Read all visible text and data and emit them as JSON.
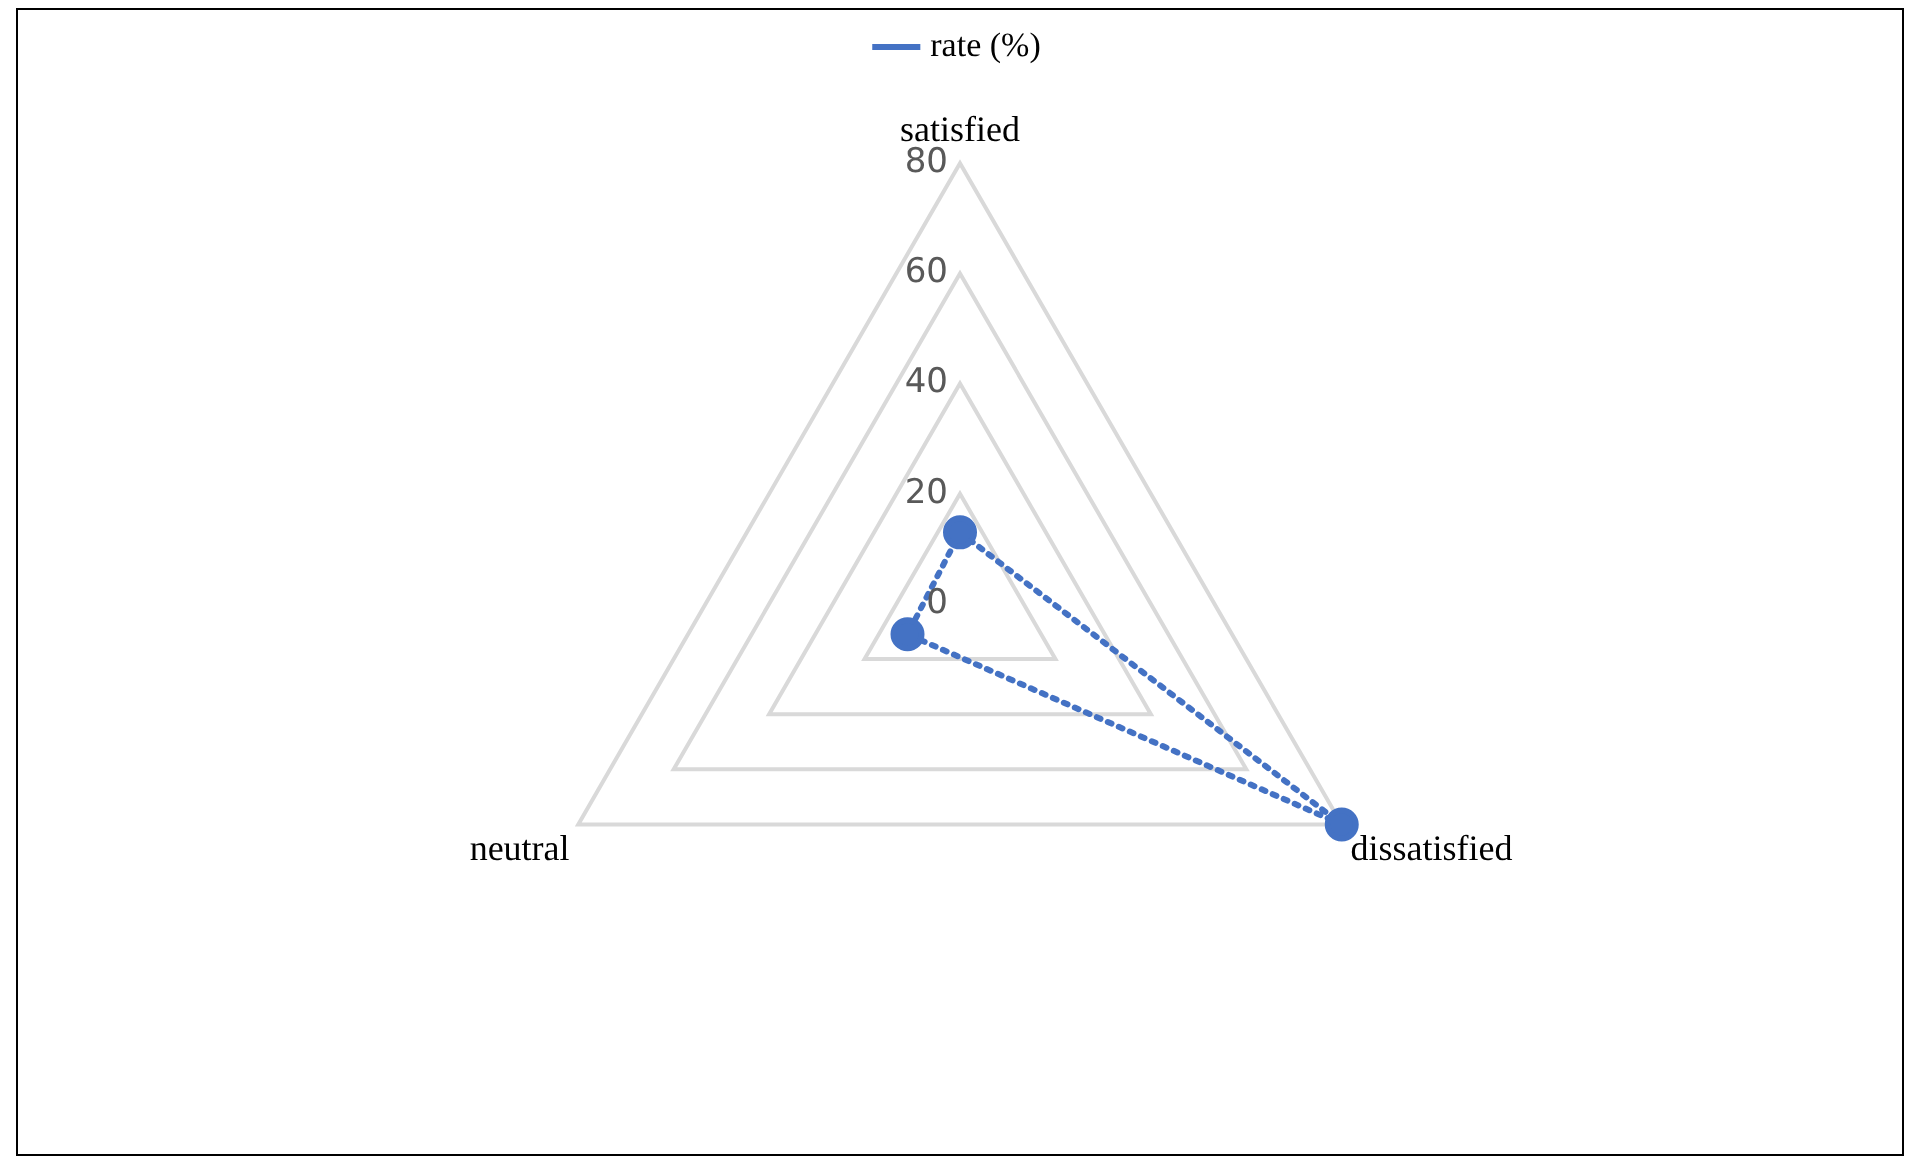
{
  "chart_data": {
    "type": "radar",
    "categories": [
      "satisfied",
      "dissatisfied",
      "neutral"
    ],
    "series": [
      {
        "name": "rate (%)",
        "color": "#4472c4",
        "values": [
          13,
          80,
          11
        ]
      }
    ],
    "ylim": [
      0,
      80
    ],
    "yticks": [
      0,
      20,
      40,
      60,
      80
    ],
    "grid": true,
    "legend": "top",
    "marker": "circle",
    "line_style": "dotted"
  }
}
